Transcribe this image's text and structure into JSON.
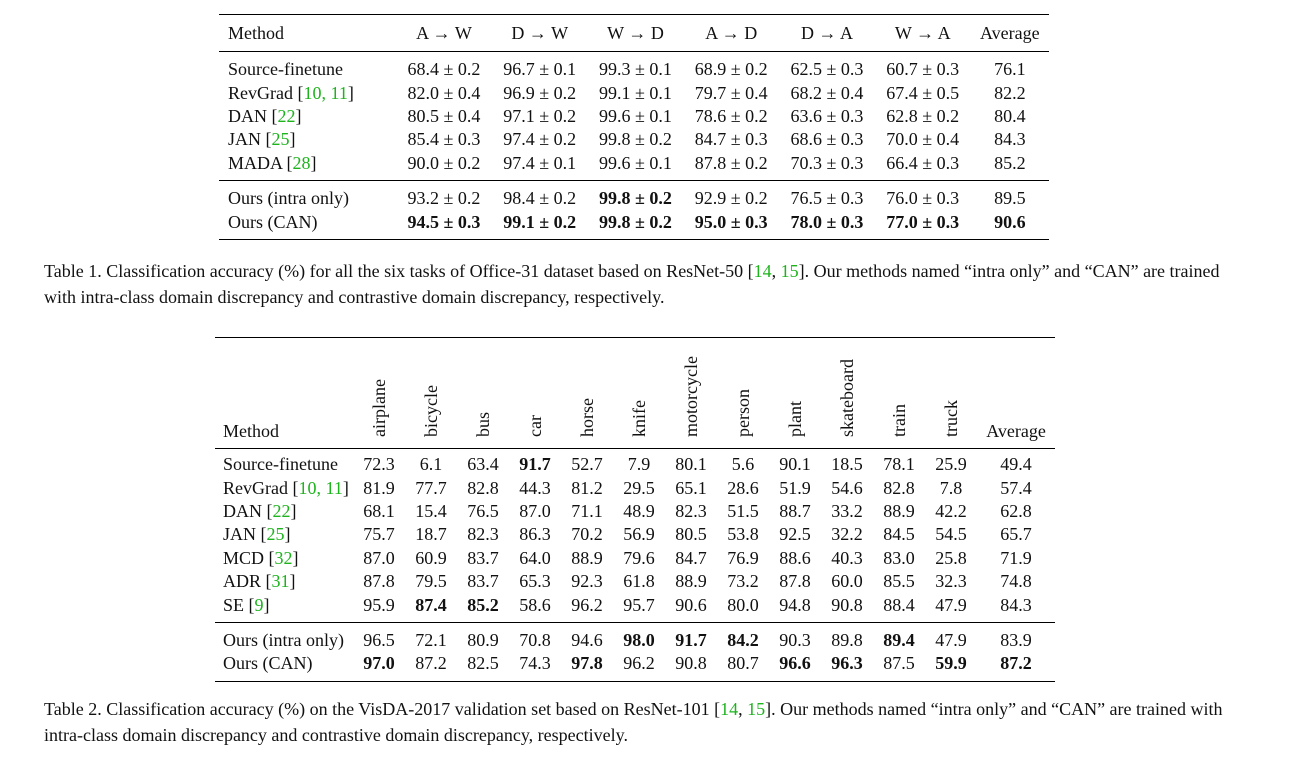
{
  "table1": {
    "headers": [
      "Method",
      "A → W",
      "D → W",
      "W → D",
      "A → D",
      "D → A",
      "W → A",
      "Average"
    ],
    "rows": [
      {
        "method": "Source-finetune",
        "cites": "",
        "cells": [
          "68.4 ± 0.2",
          "96.7 ± 0.1",
          "99.3 ± 0.1",
          "68.9 ± 0.2",
          "62.5 ± 0.3",
          "60.7 ± 0.3",
          "76.1"
        ],
        "bold": []
      },
      {
        "method": "RevGrad [",
        "cites": "10, 11",
        "close": "]",
        "cells": [
          "82.0 ± 0.4",
          "96.9 ± 0.2",
          "99.1 ± 0.1",
          "79.7 ± 0.4",
          "68.2 ± 0.4",
          "67.4 ± 0.5",
          "82.2"
        ],
        "bold": []
      },
      {
        "method": "DAN [",
        "cites": "22",
        "close": "]",
        "cells": [
          "80.5 ± 0.4",
          "97.1 ± 0.2",
          "99.6 ± 0.1",
          "78.6 ± 0.2",
          "63.6 ± 0.3",
          "62.8 ± 0.2",
          "80.4"
        ],
        "bold": []
      },
      {
        "method": "JAN [",
        "cites": "25",
        "close": "]",
        "cells": [
          "85.4 ± 0.3",
          "97.4 ± 0.2",
          "99.8 ± 0.2",
          "84.7 ± 0.3",
          "68.6 ± 0.3",
          "70.0 ± 0.4",
          "84.3"
        ],
        "bold": []
      },
      {
        "method": "MADA [",
        "cites": "28",
        "close": "]",
        "cells": [
          "90.0 ± 0.2",
          "97.4 ± 0.1",
          "99.6 ± 0.1",
          "87.8 ± 0.2",
          "70.3 ± 0.3",
          "66.4 ± 0.3",
          "85.2"
        ],
        "bold": []
      }
    ],
    "ours": [
      {
        "method": "Ours (intra only)",
        "cells": [
          "93.2 ± 0.2",
          "98.4 ± 0.2",
          "99.8 ± 0.2",
          "92.9 ± 0.2",
          "76.5 ± 0.3",
          "76.0 ± 0.3",
          "89.5"
        ],
        "bold": [
          2
        ]
      },
      {
        "method": "Ours (CAN)",
        "cells": [
          "94.5 ± 0.3",
          "99.1 ± 0.2",
          "99.8 ± 0.2",
          "95.0 ± 0.3",
          "78.0 ± 0.3",
          "77.0 ± 0.3",
          "90.6"
        ],
        "bold": [
          0,
          1,
          2,
          3,
          4,
          5,
          6
        ]
      }
    ]
  },
  "caption1": {
    "pre": "Table 1. Classification accuracy (%) for all the six tasks of Office-31 dataset based on ResNet-50 [",
    "cite_a": "14",
    "sep": ", ",
    "cite_b": "15",
    "post": "]. Our methods named “intra only” and “CAN” are trained with intra-class domain discrepancy and contrastive domain discrepancy, respectively."
  },
  "table2": {
    "method_header": "Method",
    "classes": [
      "airplane",
      "bicycle",
      "bus",
      "car",
      "horse",
      "knife",
      "motorcycle",
      "person",
      "plant",
      "skateboard",
      "train",
      "truck"
    ],
    "average_header": "Average",
    "rows": [
      {
        "method": "Source-finetune",
        "cites": "",
        "cells": [
          "72.3",
          "6.1",
          "63.4",
          "91.7",
          "52.7",
          "7.9",
          "80.1",
          "5.6",
          "90.1",
          "18.5",
          "78.1",
          "25.9",
          "49.4"
        ],
        "bold": [
          3
        ]
      },
      {
        "method": "RevGrad [",
        "cites": "10, 11",
        "close": "]",
        "cells": [
          "81.9",
          "77.7",
          "82.8",
          "44.3",
          "81.2",
          "29.5",
          "65.1",
          "28.6",
          "51.9",
          "54.6",
          "82.8",
          "7.8",
          "57.4"
        ],
        "bold": []
      },
      {
        "method": "DAN [",
        "cites": "22",
        "close": "]",
        "cells": [
          "68.1",
          "15.4",
          "76.5",
          "87.0",
          "71.1",
          "48.9",
          "82.3",
          "51.5",
          "88.7",
          "33.2",
          "88.9",
          "42.2",
          "62.8"
        ],
        "bold": []
      },
      {
        "method": "JAN [",
        "cites": "25",
        "close": "]",
        "cells": [
          "75.7",
          "18.7",
          "82.3",
          "86.3",
          "70.2",
          "56.9",
          "80.5",
          "53.8",
          "92.5",
          "32.2",
          "84.5",
          "54.5",
          "65.7"
        ],
        "bold": []
      },
      {
        "method": "MCD [",
        "cites": "32",
        "close": "]",
        "cells": [
          "87.0",
          "60.9",
          "83.7",
          "64.0",
          "88.9",
          "79.6",
          "84.7",
          "76.9",
          "88.6",
          "40.3",
          "83.0",
          "25.8",
          "71.9"
        ],
        "bold": []
      },
      {
        "method": "ADR [",
        "cites": "31",
        "close": "]",
        "cells": [
          "87.8",
          "79.5",
          "83.7",
          "65.3",
          "92.3",
          "61.8",
          "88.9",
          "73.2",
          "87.8",
          "60.0",
          "85.5",
          "32.3",
          "74.8"
        ],
        "bold": []
      },
      {
        "method": "SE [",
        "cites": "9",
        "close": "]",
        "cells": [
          "95.9",
          "87.4",
          "85.2",
          "58.6",
          "96.2",
          "95.7",
          "90.6",
          "80.0",
          "94.8",
          "90.8",
          "88.4",
          "47.9",
          "84.3"
        ],
        "bold": [
          1,
          2
        ]
      }
    ],
    "ours": [
      {
        "method": "Ours (intra only)",
        "cells": [
          "96.5",
          "72.1",
          "80.9",
          "70.8",
          "94.6",
          "98.0",
          "91.7",
          "84.2",
          "90.3",
          "89.8",
          "89.4",
          "47.9",
          "83.9"
        ],
        "bold": [
          5,
          6,
          7,
          10
        ]
      },
      {
        "method": "Ours (CAN)",
        "cells": [
          "97.0",
          "87.2",
          "82.5",
          "74.3",
          "97.8",
          "96.2",
          "90.8",
          "80.7",
          "96.6",
          "96.3",
          "87.5",
          "59.9",
          "87.2"
        ],
        "bold": [
          0,
          4,
          8,
          9,
          11,
          12
        ]
      }
    ]
  },
  "caption2": {
    "pre": "Table 2. Classification accuracy (%) on the VisDA-2017 validation set based on ResNet-101 [",
    "cite_a": "14",
    "sep": ", ",
    "cite_b": "15",
    "post": "]. Our methods named “intra only” and “CAN” are trained with intra-class domain discrepancy and contrastive domain discrepancy, respectively."
  },
  "colors": {
    "citation": "#1db31d"
  }
}
